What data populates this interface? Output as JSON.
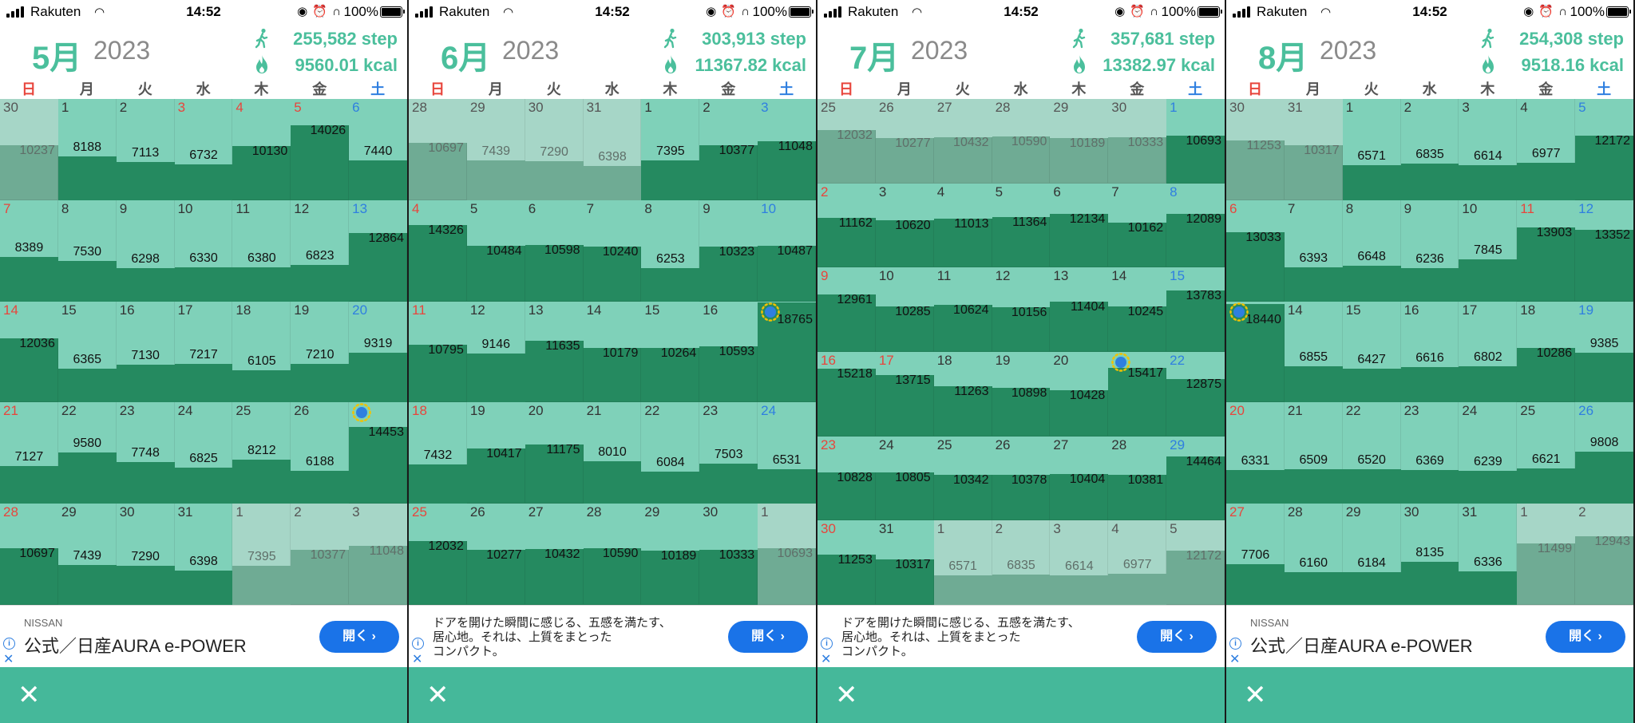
{
  "status": {
    "carrier": "Rakuten",
    "time": "14:52",
    "battery": "100%"
  },
  "weekdays": [
    "日",
    "月",
    "火",
    "水",
    "木",
    "金",
    "土"
  ],
  "colors": {
    "accent": "#4bbf9c",
    "sunday": "#e8453c",
    "saturday": "#2f7fe0",
    "fill_dark": "#258a60",
    "fill_light": "#7fd1b9",
    "fill_other": "#9ecfbf",
    "bottom_bar": "#45b89a",
    "open_button": "#1a73e8"
  },
  "bottom_bar": {
    "close": "✕"
  },
  "icons": {
    "step": "walking-icon",
    "calorie": "flame-icon",
    "best_day": "laurel-wreath-icon",
    "info": "ad-info-icon",
    "close": "close-icon"
  },
  "months": [
    {
      "month_label": "5月",
      "year": "2023",
      "steps_total": "255,582 step",
      "kcal_total": "9560.01 kcal",
      "ad": {
        "type": "nissan",
        "brand": "NISSAN",
        "headline": "公式／日産AURA e-POWER",
        "button": "開く ›"
      },
      "weeks": [
        [
          {
            "d": "30",
            "v": "10237",
            "o": 1
          },
          {
            "d": "1",
            "v": "8188"
          },
          {
            "d": "2",
            "v": "7113"
          },
          {
            "d": "3",
            "v": "6732",
            "h": 1
          },
          {
            "d": "4",
            "v": "10130",
            "h": 1
          },
          {
            "d": "5",
            "v": "14026",
            "h": 1
          },
          {
            "d": "6",
            "v": "7440"
          }
        ],
        [
          {
            "d": "7",
            "v": "8389"
          },
          {
            "d": "8",
            "v": "7530"
          },
          {
            "d": "9",
            "v": "6298"
          },
          {
            "d": "10",
            "v": "6330"
          },
          {
            "d": "11",
            "v": "6380"
          },
          {
            "d": "12",
            "v": "6823"
          },
          {
            "d": "13",
            "v": "12864"
          }
        ],
        [
          {
            "d": "14",
            "v": "12036"
          },
          {
            "d": "15",
            "v": "6365"
          },
          {
            "d": "16",
            "v": "7130"
          },
          {
            "d": "17",
            "v": "7217"
          },
          {
            "d": "18",
            "v": "6105"
          },
          {
            "d": "19",
            "v": "7210"
          },
          {
            "d": "20",
            "v": "9319"
          }
        ],
        [
          {
            "d": "21",
            "v": "7127"
          },
          {
            "d": "22",
            "v": "9580"
          },
          {
            "d": "23",
            "v": "7748"
          },
          {
            "d": "24",
            "v": "6825"
          },
          {
            "d": "25",
            "v": "8212"
          },
          {
            "d": "26",
            "v": "6188"
          },
          {
            "d": "27",
            "v": "14453",
            "best": 1
          }
        ],
        [
          {
            "d": "28",
            "v": "10697"
          },
          {
            "d": "29",
            "v": "7439"
          },
          {
            "d": "30",
            "v": "7290"
          },
          {
            "d": "31",
            "v": "6398"
          },
          {
            "d": "1",
            "v": "7395",
            "o": 1
          },
          {
            "d": "2",
            "v": "10377",
            "o": 1
          },
          {
            "d": "3",
            "v": "11048",
            "o": 1
          }
        ]
      ]
    },
    {
      "month_label": "6月",
      "year": "2023",
      "steps_total": "303,913 step",
      "kcal_total": "11367.82 kcal",
      "ad": {
        "type": "text",
        "text": "ドアを開けた瞬間に感じる、五感を満たす、\n居心地。それは、上質をまとった\nコンパクト。",
        "button": "開く ›"
      },
      "weeks": [
        [
          {
            "d": "28",
            "v": "10697",
            "o": 1
          },
          {
            "d": "29",
            "v": "7439",
            "o": 1
          },
          {
            "d": "30",
            "v": "7290",
            "o": 1
          },
          {
            "d": "31",
            "v": "6398",
            "o": 1
          },
          {
            "d": "1",
            "v": "7395"
          },
          {
            "d": "2",
            "v": "10377"
          },
          {
            "d": "3",
            "v": "11048"
          }
        ],
        [
          {
            "d": "4",
            "v": "14326"
          },
          {
            "d": "5",
            "v": "10484"
          },
          {
            "d": "6",
            "v": "10598"
          },
          {
            "d": "7",
            "v": "10240"
          },
          {
            "d": "8",
            "v": "6253"
          },
          {
            "d": "9",
            "v": "10323"
          },
          {
            "d": "10",
            "v": "10487"
          }
        ],
        [
          {
            "d": "11",
            "v": "10795"
          },
          {
            "d": "12",
            "v": "9146"
          },
          {
            "d": "13",
            "v": "11635"
          },
          {
            "d": "14",
            "v": "10179"
          },
          {
            "d": "15",
            "v": "10264"
          },
          {
            "d": "16",
            "v": "10593"
          },
          {
            "d": "17",
            "v": "18765",
            "best": 1
          }
        ],
        [
          {
            "d": "18",
            "v": "7432"
          },
          {
            "d": "19",
            "v": "10417"
          },
          {
            "d": "20",
            "v": "11175"
          },
          {
            "d": "21",
            "v": "8010"
          },
          {
            "d": "22",
            "v": "6084"
          },
          {
            "d": "23",
            "v": "7503"
          },
          {
            "d": "24",
            "v": "6531"
          }
        ],
        [
          {
            "d": "25",
            "v": "12032"
          },
          {
            "d": "26",
            "v": "10277"
          },
          {
            "d": "27",
            "v": "10432"
          },
          {
            "d": "28",
            "v": "10590"
          },
          {
            "d": "29",
            "v": "10189"
          },
          {
            "d": "30",
            "v": "10333"
          },
          {
            "d": "1",
            "v": "10693",
            "o": 1
          }
        ]
      ]
    },
    {
      "month_label": "7月",
      "year": "2023",
      "steps_total": "357,681 step",
      "kcal_total": "13382.97 kcal",
      "ad": {
        "type": "text",
        "text": "ドアを開けた瞬間に感じる、五感を満たす、\n居心地。それは、上質をまとった\nコンパクト。",
        "button": "開く ›"
      },
      "weeks": [
        [
          {
            "d": "25",
            "v": "12032",
            "o": 1
          },
          {
            "d": "26",
            "v": "10277",
            "o": 1
          },
          {
            "d": "27",
            "v": "10432",
            "o": 1
          },
          {
            "d": "28",
            "v": "10590",
            "o": 1
          },
          {
            "d": "29",
            "v": "10189",
            "o": 1
          },
          {
            "d": "30",
            "v": "10333",
            "o": 1
          },
          {
            "d": "1",
            "v": "10693"
          }
        ],
        [
          {
            "d": "2",
            "v": "11162"
          },
          {
            "d": "3",
            "v": "10620"
          },
          {
            "d": "4",
            "v": "11013"
          },
          {
            "d": "5",
            "v": "11364"
          },
          {
            "d": "6",
            "v": "12134"
          },
          {
            "d": "7",
            "v": "10162"
          },
          {
            "d": "8",
            "v": "12089"
          }
        ],
        [
          {
            "d": "9",
            "v": "12961"
          },
          {
            "d": "10",
            "v": "10285"
          },
          {
            "d": "11",
            "v": "10624"
          },
          {
            "d": "12",
            "v": "10156"
          },
          {
            "d": "13",
            "v": "11404"
          },
          {
            "d": "14",
            "v": "10245"
          },
          {
            "d": "15",
            "v": "13783"
          }
        ],
        [
          {
            "d": "16",
            "v": "15218"
          },
          {
            "d": "17",
            "v": "13715",
            "h": 1
          },
          {
            "d": "18",
            "v": "11263"
          },
          {
            "d": "19",
            "v": "10898"
          },
          {
            "d": "20",
            "v": "10428"
          },
          {
            "d": "21",
            "v": "15417",
            "best": 1
          },
          {
            "d": "22",
            "v": "12875"
          }
        ],
        [
          {
            "d": "23",
            "v": "10828"
          },
          {
            "d": "24",
            "v": "10805"
          },
          {
            "d": "25",
            "v": "10342"
          },
          {
            "d": "26",
            "v": "10378"
          },
          {
            "d": "27",
            "v": "10404"
          },
          {
            "d": "28",
            "v": "10381"
          },
          {
            "d": "29",
            "v": "14464"
          }
        ],
        [
          {
            "d": "30",
            "v": "11253"
          },
          {
            "d": "31",
            "v": "10317"
          },
          {
            "d": "1",
            "v": "6571",
            "o": 1
          },
          {
            "d": "2",
            "v": "6835",
            "o": 1
          },
          {
            "d": "3",
            "v": "6614",
            "o": 1
          },
          {
            "d": "4",
            "v": "6977",
            "o": 1
          },
          {
            "d": "5",
            "v": "12172",
            "o": 1
          }
        ]
      ]
    },
    {
      "month_label": "8月",
      "year": "2023",
      "steps_total": "254,308 step",
      "kcal_total": "9518.16 kcal",
      "ad": {
        "type": "nissan",
        "brand": "NISSAN",
        "headline": "公式／日産AURA e-POWER",
        "button": "開く ›"
      },
      "weeks": [
        [
          {
            "d": "30",
            "v": "11253",
            "o": 1
          },
          {
            "d": "31",
            "v": "10317",
            "o": 1
          },
          {
            "d": "1",
            "v": "6571"
          },
          {
            "d": "2",
            "v": "6835"
          },
          {
            "d": "3",
            "v": "6614"
          },
          {
            "d": "4",
            "v": "6977"
          },
          {
            "d": "5",
            "v": "12172"
          }
        ],
        [
          {
            "d": "6",
            "v": "13033"
          },
          {
            "d": "7",
            "v": "6393"
          },
          {
            "d": "8",
            "v": "6648"
          },
          {
            "d": "9",
            "v": "6236"
          },
          {
            "d": "10",
            "v": "7845"
          },
          {
            "d": "11",
            "v": "13903",
            "h": 1
          },
          {
            "d": "12",
            "v": "13352"
          }
        ],
        [
          {
            "d": "13",
            "v": "18440",
            "best": 1
          },
          {
            "d": "14",
            "v": "6855"
          },
          {
            "d": "15",
            "v": "6427"
          },
          {
            "d": "16",
            "v": "6616"
          },
          {
            "d": "17",
            "v": "6802"
          },
          {
            "d": "18",
            "v": "10286"
          },
          {
            "d": "19",
            "v": "9385"
          }
        ],
        [
          {
            "d": "20",
            "v": "6331"
          },
          {
            "d": "21",
            "v": "6509"
          },
          {
            "d": "22",
            "v": "6520"
          },
          {
            "d": "23",
            "v": "6369"
          },
          {
            "d": "24",
            "v": "6239"
          },
          {
            "d": "25",
            "v": "6621"
          },
          {
            "d": "26",
            "v": "9808"
          }
        ],
        [
          {
            "d": "27",
            "v": "7706"
          },
          {
            "d": "28",
            "v": "6160"
          },
          {
            "d": "29",
            "v": "6184"
          },
          {
            "d": "30",
            "v": "8135"
          },
          {
            "d": "31",
            "v": "6336"
          },
          {
            "d": "1",
            "v": "11499",
            "o": 1
          },
          {
            "d": "2",
            "v": "12943",
            "o": 1
          }
        ]
      ]
    }
  ]
}
